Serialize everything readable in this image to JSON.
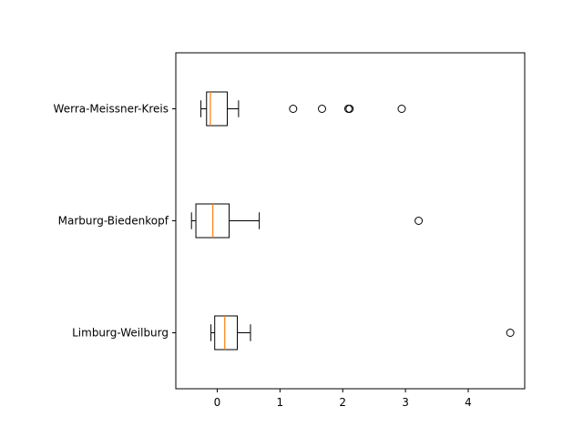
{
  "chart_data": {
    "type": "boxplot",
    "orientation": "horizontal",
    "title": "",
    "xlabel": "",
    "ylabel": "",
    "xlim": [
      -0.66,
      4.9
    ],
    "xticks": [
      0,
      1,
      2,
      3,
      4
    ],
    "grid": false,
    "colors": {
      "box": "#000000",
      "median": "#ff7f0e",
      "flier": "#000000"
    },
    "categories": [
      "Limburg-Weilburg",
      "Marburg-Biedenkopf",
      "Werra-Meissner-Kreis"
    ],
    "boxes": [
      {
        "label": "Limburg-Weilburg",
        "whislo": -0.1,
        "q1": -0.04,
        "med": 0.12,
        "q3": 0.32,
        "whishi": 0.53,
        "fliers": [
          4.67
        ]
      },
      {
        "label": "Marburg-Biedenkopf",
        "whislo": -0.41,
        "q1": -0.34,
        "med": -0.07,
        "q3": 0.19,
        "whishi": 0.67,
        "fliers": [
          3.21
        ]
      },
      {
        "label": "Werra-Meissner-Kreis",
        "whislo": -0.26,
        "q1": -0.17,
        "med": -0.11,
        "q3": 0.16,
        "whishi": 0.34,
        "fliers": [
          1.21,
          1.67,
          2.09,
          2.11,
          2.94
        ]
      }
    ]
  }
}
